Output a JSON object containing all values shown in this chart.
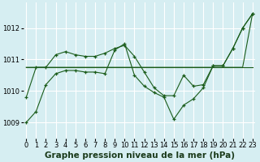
{
  "background_color": "#d6eef2",
  "grid_color": "#ffffff",
  "line_color": "#1a5c1a",
  "xlabel": "Graphe pression niveau de la mer (hPa)",
  "xlabel_fontsize": 7.5,
  "tick_fontsize": 6,
  "ylim": [
    1008.5,
    1012.8
  ],
  "yticks": [
    1009,
    1010,
    1011,
    1012
  ],
  "xlim": [
    -0.3,
    23.3
  ],
  "xticks": [
    0,
    1,
    2,
    3,
    4,
    5,
    6,
    7,
    8,
    9,
    10,
    11,
    12,
    13,
    14,
    15,
    16,
    17,
    18,
    19,
    20,
    21,
    22,
    23
  ],
  "series": [
    {
      "y": [
        1010.75,
        1010.75,
        1010.75,
        1010.75,
        1010.75,
        1010.75,
        1010.75,
        1010.75,
        1010.75,
        1010.75,
        1010.75,
        1010.75,
        1010.75,
        1010.75,
        1010.75,
        1010.75,
        1010.75,
        1010.75,
        1010.75,
        1010.75,
        1010.75,
        1010.75,
        1010.75,
        1010.75
      ],
      "markers": false
    },
    {
      "y": [
        1010.75,
        1010.75,
        1010.75,
        1010.75,
        1010.75,
        1010.75,
        1010.75,
        1010.75,
        1010.75,
        1010.75,
        1010.75,
        1010.75,
        1010.75,
        1010.75,
        1010.75,
        1010.75,
        1010.75,
        1010.75,
        1010.75,
        1010.75,
        1010.75,
        1010.75,
        1010.75,
        1012.45
      ],
      "markers": false
    },
    {
      "y": [
        1009.8,
        1010.75,
        1010.75,
        1011.15,
        1011.25,
        1011.15,
        1011.1,
        1011.1,
        1011.2,
        1011.35,
        1011.45,
        1011.1,
        1010.6,
        1010.1,
        1009.85,
        1009.85,
        1010.5,
        1010.15,
        1010.2,
        1010.8,
        1010.8,
        1011.35,
        1012.0,
        1012.45
      ],
      "markers": true
    },
    {
      "y": [
        1009.0,
        1009.35,
        1010.2,
        1010.55,
        1010.65,
        1010.65,
        1010.6,
        1010.6,
        1010.55,
        1011.3,
        1011.5,
        1010.5,
        1010.15,
        1009.95,
        1009.8,
        1009.1,
        1009.55,
        1009.75,
        1010.1,
        1010.8,
        1010.8,
        1011.35,
        1012.0,
        1012.45
      ],
      "markers": true
    }
  ]
}
